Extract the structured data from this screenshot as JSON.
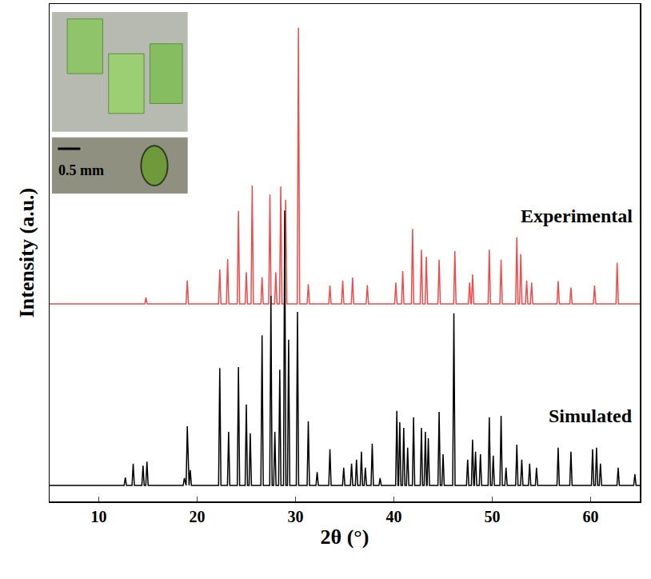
{
  "chart_data": {
    "type": "line",
    "xlabel": "2θ (°)",
    "ylabel": "Intensity (a.u.)",
    "annotations": [
      "0.5 mm"
    ],
    "xlim": [
      5,
      65
    ],
    "xticks": [
      10,
      20,
      30,
      40,
      50,
      60
    ],
    "ylim": [
      0,
      100
    ],
    "yticks": [],
    "tick_labels": "x",
    "grid": false,
    "series": [
      {
        "name": "Experimental",
        "color": "#f04a4a",
        "x": [
          5,
          14.68,
          14.8,
          14.92,
          18.88,
          19.0,
          19.12,
          22.18,
          22.3,
          22.42,
          22.98,
          23.1,
          23.22,
          24.08,
          24.2,
          24.32,
          24.88,
          25.0,
          25.12,
          25.48,
          25.6,
          25.72,
          26.48,
          26.6,
          26.72,
          27.28,
          27.4,
          27.52,
          27.88,
          28.0,
          28.12,
          28.38,
          28.5,
          28.62,
          28.88,
          29.0,
          29.12,
          30.18,
          30.3,
          30.42,
          31.18,
          31.3,
          31.42,
          33.38,
          33.5,
          33.62,
          34.68,
          34.8,
          34.92,
          35.68,
          35.8,
          35.92,
          37.18,
          37.3,
          37.42,
          40.08,
          40.2,
          40.32,
          40.78,
          40.9,
          41.02,
          41.78,
          41.9,
          42.02,
          42.68,
          42.8,
          42.92,
          43.18,
          43.3,
          43.42,
          44.48,
          44.6,
          44.72,
          46.08,
          46.2,
          46.32,
          47.58,
          47.7,
          47.82,
          47.88,
          48.0,
          48.12,
          49.58,
          49.7,
          49.82,
          50.78,
          50.9,
          51.02,
          52.38,
          52.5,
          52.62,
          52.78,
          52.9,
          53.02,
          53.38,
          53.5,
          53.62,
          53.88,
          54.0,
          54.12,
          56.58,
          56.7,
          56.82,
          57.88,
          58.0,
          58.12,
          60.28,
          60.4,
          60.52,
          62.58,
          62.7,
          62.82,
          65
        ],
        "values": [
          39.7,
          39.7,
          41.0,
          39.7,
          39.7,
          44.4,
          39.7,
          39.7,
          46.6,
          39.7,
          39.7,
          48.7,
          39.7,
          39.7,
          58.4,
          39.7,
          39.7,
          46.1,
          39.7,
          39.7,
          63.5,
          39.7,
          39.7,
          45.1,
          39.7,
          39.7,
          61.7,
          39.7,
          39.7,
          46.1,
          39.7,
          39.7,
          63.3,
          39.7,
          39.7,
          60.6,
          39.7,
          39.7,
          95.2,
          39.7,
          39.7,
          43.7,
          39.7,
          39.7,
          43.4,
          39.7,
          39.7,
          44.4,
          39.7,
          39.7,
          45.0,
          39.7,
          39.7,
          43.5,
          39.7,
          39.7,
          44.0,
          39.7,
          39.7,
          46.3,
          39.7,
          39.7,
          54.8,
          39.7,
          39.7,
          50.6,
          39.7,
          39.7,
          49.2,
          39.7,
          39.7,
          48.6,
          39.7,
          39.7,
          50.3,
          39.7,
          39.7,
          44.0,
          39.7,
          39.7,
          45.6,
          39.7,
          39.7,
          50.6,
          39.7,
          39.7,
          48.6,
          39.7,
          39.7,
          53.1,
          39.7,
          39.7,
          49.7,
          39.7,
          39.7,
          44.4,
          39.7,
          39.7,
          44.0,
          39.7,
          39.7,
          44.3,
          39.7,
          39.7,
          43.0,
          39.7,
          39.7,
          43.4,
          39.7,
          39.7,
          48.0,
          39.7,
          39.7
        ]
      },
      {
        "name": "Simulated",
        "color": "#000000",
        "x": [
          5,
          12.58,
          12.7,
          12.82,
          13.38,
          13.5,
          13.62,
          14.38,
          14.5,
          14.62,
          14.78,
          14.9,
          15.02,
          18.58,
          18.7,
          18.82,
          18.88,
          19.0,
          19.12,
          19.18,
          19.3,
          19.42,
          22.18,
          22.3,
          22.42,
          23.08,
          23.2,
          23.32,
          24.08,
          24.2,
          24.32,
          24.88,
          25.0,
          25.12,
          25.28,
          25.4,
          25.52,
          26.48,
          26.6,
          26.72,
          27.38,
          27.5,
          27.62,
          27.78,
          27.9,
          28.02,
          28.28,
          28.4,
          28.52,
          28.78,
          28.9,
          29.02,
          29.18,
          29.3,
          29.42,
          30.08,
          30.2,
          30.32,
          31.18,
          31.3,
          31.42,
          32.08,
          32.2,
          32.32,
          33.38,
          33.5,
          33.62,
          34.78,
          34.9,
          35.02,
          35.58,
          35.7,
          35.82,
          36.08,
          36.2,
          36.32,
          36.58,
          36.7,
          36.82,
          36.98,
          37.1,
          37.22,
          37.68,
          37.8,
          37.92,
          38.48,
          38.6,
          38.72,
          40.18,
          40.3,
          40.42,
          40.48,
          40.6,
          40.72,
          40.88,
          41.0,
          41.12,
          41.28,
          41.4,
          41.52,
          41.88,
          42.0,
          42.12,
          42.68,
          42.8,
          42.92,
          43.08,
          43.2,
          43.32,
          43.38,
          43.5,
          43.62,
          44.48,
          44.6,
          44.72,
          44.88,
          45.0,
          45.12,
          45.98,
          46.1,
          46.22,
          47.38,
          47.5,
          47.62,
          47.88,
          48.0,
          48.12,
          48.18,
          48.3,
          48.42,
          48.68,
          48.8,
          48.92,
          49.58,
          49.7,
          49.82,
          49.98,
          50.1,
          50.22,
          50.78,
          50.9,
          51.02,
          51.28,
          51.4,
          51.52,
          52.38,
          52.5,
          52.62,
          52.88,
          53.0,
          53.12,
          53.68,
          53.8,
          53.92,
          54.38,
          54.5,
          54.62,
          56.58,
          56.7,
          56.82,
          57.88,
          58.0,
          58.12,
          60.08,
          60.2,
          60.32,
          60.48,
          60.6,
          60.72,
          60.88,
          61.0,
          61.12,
          62.68,
          62.8,
          62.92,
          64.38,
          64.5,
          64.62,
          65
        ],
        "values": [
          3.2,
          3.2,
          4.8,
          3.2,
          3.2,
          7.6,
          3.2,
          3.2,
          7.2,
          3.2,
          3.2,
          8.0,
          3.2,
          3.2,
          4.7,
          3.2,
          3.2,
          15.1,
          3.2,
          3.2,
          6.3,
          3.2,
          3.2,
          26.8,
          3.2,
          3.2,
          14.0,
          3.2,
          3.2,
          27.0,
          3.2,
          3.2,
          19.5,
          3.2,
          3.2,
          13.7,
          3.2,
          3.2,
          33.4,
          3.2,
          3.2,
          41.3,
          3.2,
          3.2,
          14.0,
          3.2,
          3.2,
          26.5,
          3.2,
          3.2,
          58.5,
          3.2,
          3.2,
          32.5,
          3.2,
          3.2,
          38.1,
          3.2,
          3.2,
          16.1,
          3.2,
          3.2,
          5.9,
          3.2,
          3.2,
          10.5,
          3.2,
          3.2,
          6.8,
          3.2,
          3.2,
          7.6,
          3.2,
          3.2,
          8.4,
          3.2,
          3.2,
          10.0,
          3.2,
          3.2,
          6.8,
          3.2,
          3.2,
          11.6,
          3.2,
          3.2,
          4.7,
          3.2,
          3.2,
          18.2,
          3.2,
          3.2,
          15.9,
          3.2,
          3.2,
          14.8,
          3.2,
          3.2,
          10.8,
          3.2,
          3.2,
          16.9,
          3.2,
          3.2,
          14.8,
          3.2,
          3.2,
          14.0,
          3.2,
          3.2,
          12.7,
          3.2,
          3.2,
          18.0,
          3.2,
          3.2,
          9.5,
          3.2,
          3.2,
          37.8,
          3.2,
          3.2,
          8.4,
          3.2,
          3.2,
          12.4,
          3.2,
          3.2,
          10.0,
          3.2,
          3.2,
          9.5,
          3.2,
          3.2,
          16.9,
          3.2,
          3.2,
          9.2,
          3.2,
          3.2,
          17.2,
          3.2,
          3.2,
          6.8,
          3.2,
          3.2,
          11.4,
          3.2,
          3.2,
          8.4,
          3.2,
          3.2,
          7.6,
          3.2,
          3.2,
          6.8,
          3.2,
          3.2,
          10.8,
          3.2,
          3.2,
          10.0,
          3.2,
          3.2,
          10.5,
          3.2,
          3.2,
          10.8,
          3.2,
          3.2,
          7.6,
          3.2,
          3.2,
          6.8,
          3.2,
          3.2,
          5.5,
          3.2,
          3.2
        ]
      }
    ]
  }
}
